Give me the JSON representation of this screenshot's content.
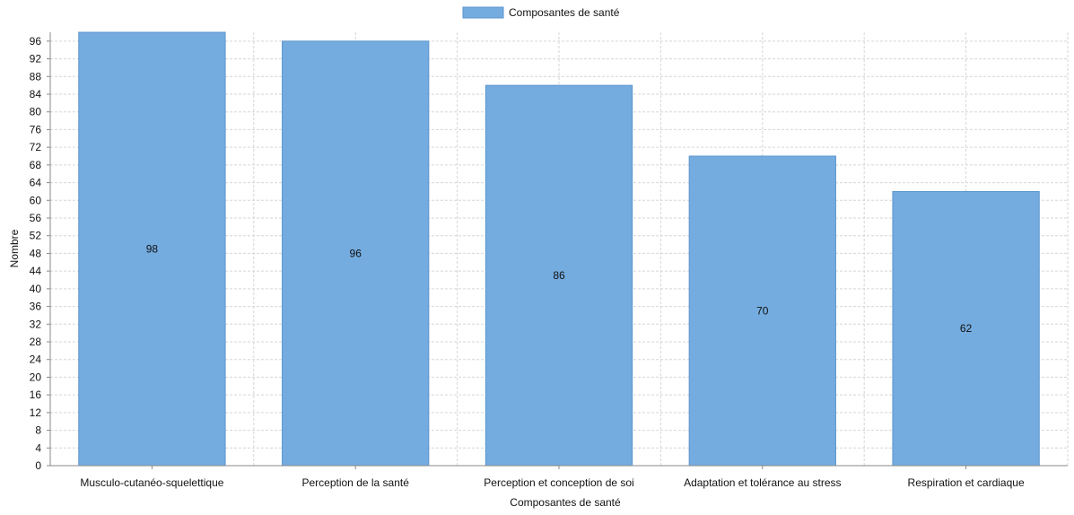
{
  "chart_data": {
    "type": "bar",
    "categories": [
      "Musculo-cutanéo-squelettique",
      "Perception de la santé",
      "Perception et conception de soi",
      "Adaptation et tolérance au stress",
      "Respiration et cardiaque"
    ],
    "series": [
      {
        "name": "Composantes de santé",
        "values": [
          98,
          96,
          86,
          70,
          62
        ]
      }
    ],
    "value_labels": [
      "98",
      "96",
      "86",
      "70",
      "62"
    ],
    "xlabel": "Composantes de santé",
    "ylabel": "Nombre",
    "ylim": [
      0,
      98
    ],
    "yticks": [
      0,
      4,
      8,
      12,
      16,
      20,
      24,
      28,
      32,
      36,
      40,
      44,
      48,
      52,
      56,
      60,
      64,
      68,
      72,
      76,
      80,
      84,
      88,
      92,
      96
    ],
    "grid": true,
    "legend_position": "top-center",
    "colors": {
      "bar": "#74ace0",
      "bar_edge": "#5b95cc",
      "grid": "#d6d6d6"
    }
  }
}
